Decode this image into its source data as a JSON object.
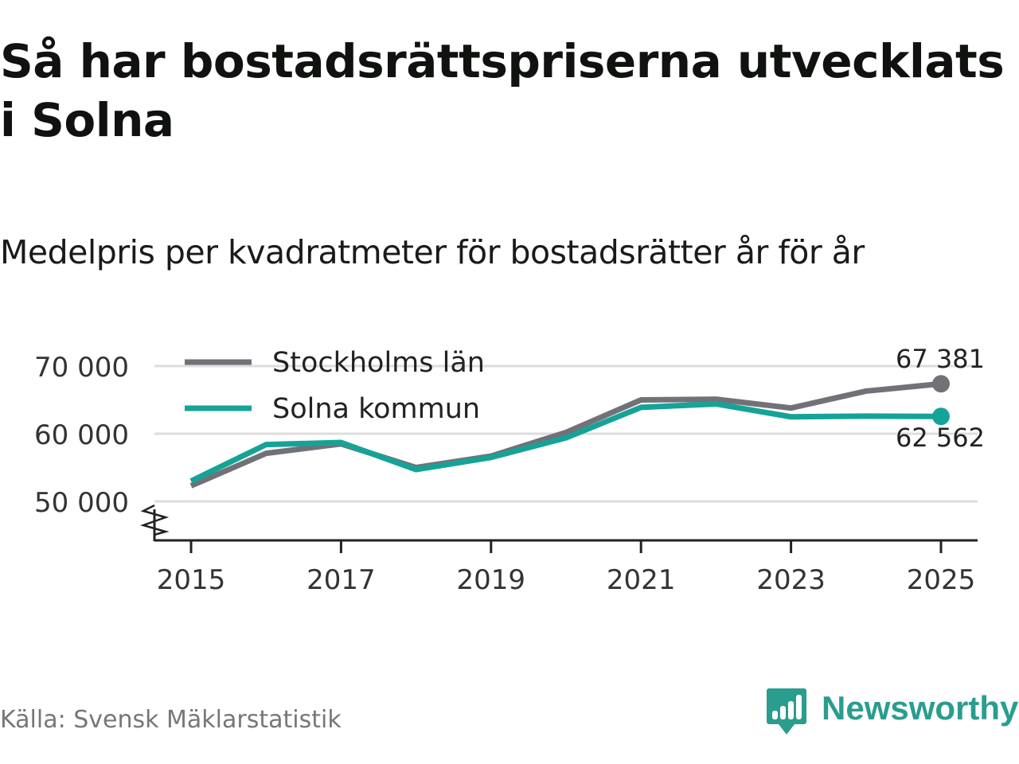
{
  "title": "Så har bostadsrättspriserna utvecklats i Solna",
  "subtitle": "Medelpris per kvadratmeter för bostadsrätter år för år",
  "source": "Källa: Svensk Mäklarstatistik",
  "brand": {
    "name": "Newsworthy",
    "icon": "newsworthy-logo-icon",
    "color": "#2a9d8f"
  },
  "chart_data": {
    "type": "line",
    "title": "Så har bostadsrättspriserna utvecklats i Solna",
    "subtitle": "Medelpris per kvadratmeter för bostadsrätter år för år",
    "xlabel": "",
    "ylabel": "",
    "x": [
      2015,
      2016,
      2017,
      2018,
      2019,
      2020,
      2021,
      2022,
      2023,
      2024,
      2025
    ],
    "xticks": [
      "2015",
      "2017",
      "2019",
      "2021",
      "2023",
      "2025"
    ],
    "yticks": [
      50000,
      60000,
      70000
    ],
    "ytick_labels": [
      "50 000",
      "60 000",
      "70 000"
    ],
    "ylim": [
      44400,
      72000
    ],
    "xlim": [
      2014.5,
      2025.5
    ],
    "axis_break": true,
    "grid": true,
    "legend_position": "top-left",
    "series": [
      {
        "name": "Stockholms län",
        "color": "#727178",
        "values": [
          52300,
          57100,
          58500,
          55000,
          56700,
          60200,
          65000,
          65100,
          63800,
          66300,
          67381
        ],
        "end_label": "67 381"
      },
      {
        "name": "Solna kommun",
        "color": "#16a397",
        "values": [
          53000,
          58400,
          58700,
          54700,
          56500,
          59400,
          63900,
          64400,
          62500,
          62600,
          62562
        ],
        "end_label": "62 562"
      }
    ]
  }
}
